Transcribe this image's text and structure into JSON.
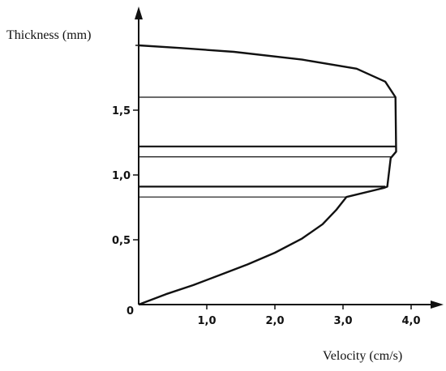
{
  "chart_data": {
    "type": "line",
    "title": "",
    "xlabel": "Velocity (cm/s)",
    "ylabel": "Thickness (mm)",
    "xlim": [
      0,
      4.5
    ],
    "ylim": [
      0,
      2.0
    ],
    "x_ticks": [
      {
        "value": 0,
        "label": "0"
      },
      {
        "value": 1.0,
        "label": "1,0"
      },
      {
        "value": 2.0,
        "label": "2,0"
      },
      {
        "value": 3.0,
        "label": "3,0"
      },
      {
        "value": 4.0,
        "label": "4,0"
      }
    ],
    "y_ticks": [
      {
        "value": 0.5,
        "label": "0,5"
      },
      {
        "value": 1.0,
        "label": "1,0"
      },
      {
        "value": 1.5,
        "label": "1,5"
      }
    ],
    "y_minor_ticks": [
      2.0
    ],
    "grid": false,
    "series": [
      {
        "points": [
          {
            "x": 0.0,
            "y": 0.0
          },
          {
            "x": 0.4,
            "y": 0.08
          },
          {
            "x": 0.8,
            "y": 0.15
          },
          {
            "x": 1.2,
            "y": 0.23
          },
          {
            "x": 1.6,
            "y": 0.31
          },
          {
            "x": 2.0,
            "y": 0.4
          },
          {
            "x": 2.4,
            "y": 0.51
          },
          {
            "x": 2.7,
            "y": 0.62
          },
          {
            "x": 2.9,
            "y": 0.73
          },
          {
            "x": 3.05,
            "y": 0.83
          },
          {
            "x": 3.6,
            "y": 0.9
          },
          {
            "x": 3.65,
            "y": 0.91
          },
          {
            "x": 3.7,
            "y": 1.13
          },
          {
            "x": 3.78,
            "y": 1.18
          },
          {
            "x": 3.77,
            "y": 1.6
          },
          {
            "x": 3.62,
            "y": 1.72
          },
          {
            "x": 3.2,
            "y": 1.82
          },
          {
            "x": 2.4,
            "y": 1.89
          },
          {
            "x": 1.4,
            "y": 1.95
          },
          {
            "x": 0.6,
            "y": 1.98
          },
          {
            "x": 0.0,
            "y": 2.0
          }
        ]
      }
    ],
    "layer_boundaries": [
      {
        "y": 1.6,
        "x_end": 3.77,
        "weight": "thin"
      },
      {
        "y": 1.22,
        "x_end": 3.78,
        "weight": "thick"
      },
      {
        "y": 1.14,
        "x_end": 3.72,
        "weight": "thin"
      },
      {
        "y": 0.91,
        "x_end": 3.62,
        "weight": "thick"
      },
      {
        "y": 0.83,
        "x_end": 3.05,
        "weight": "thin"
      }
    ]
  }
}
